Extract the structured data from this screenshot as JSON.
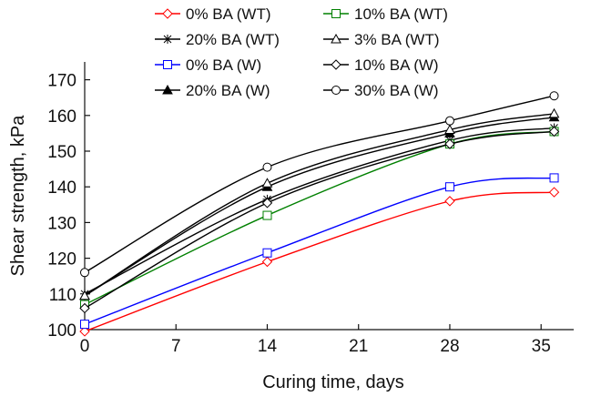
{
  "chart_data": {
    "type": "line",
    "title": "",
    "xlabel": "Curing time, days",
    "ylabel": "Shear strength, kPa",
    "xlim": [
      0,
      37.5
    ],
    "ylim": [
      100,
      175
    ],
    "xticks": [
      0,
      7,
      14,
      21,
      28,
      35
    ],
    "yticks": [
      100,
      110,
      120,
      130,
      140,
      150,
      160,
      170
    ],
    "x": [
      0,
      14,
      28,
      36
    ],
    "legend_position": "top",
    "series": [
      {
        "name": "0% BA (WT)",
        "color": "#ff0000",
        "marker": "diamond",
        "values": [
          99.5,
          119,
          136,
          138.5
        ]
      },
      {
        "name": "20% BA (WT)",
        "color": "#000000",
        "marker": "star",
        "values": [
          110,
          136.5,
          153,
          156.5
        ]
      },
      {
        "name": "0% BA (W)",
        "color": "#0000ff",
        "marker": "square",
        "values": [
          101.5,
          121.5,
          140,
          142.5
        ]
      },
      {
        "name": "20% BA (W)",
        "color": "#000000",
        "marker": "triangle-filled",
        "values": [
          109.5,
          140,
          155,
          159.5
        ]
      },
      {
        "name": "10% BA (WT)",
        "color": "#008000",
        "marker": "square",
        "values": [
          107,
          132,
          152,
          155.5
        ]
      },
      {
        "name": "3% BA (WT)",
        "color": "#000000",
        "marker": "triangle",
        "values": [
          109.5,
          141,
          156,
          160.5
        ]
      },
      {
        "name": "10% BA (W)",
        "color": "#000000",
        "marker": "diamond",
        "values": [
          106,
          135.5,
          152,
          155.5
        ]
      },
      {
        "name": "30% BA (W)",
        "color": "#000000",
        "marker": "circle",
        "values": [
          116,
          145.5,
          158.5,
          165.5
        ]
      }
    ]
  }
}
